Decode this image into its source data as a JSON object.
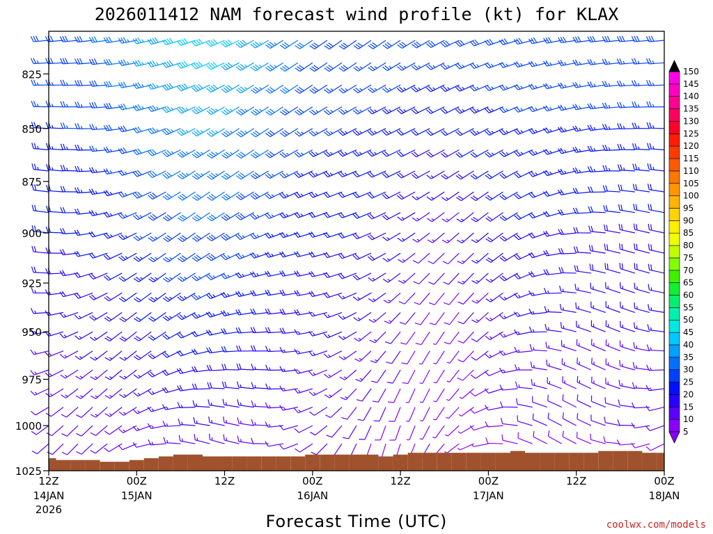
{
  "chart_data": {
    "type": "wind-barb-time-height",
    "title": "2026011412 NAM forecast wind profile (kt) for KLAX",
    "xlabel": "Forecast Time (UTC)",
    "ylabel": "",
    "y_ticks": [
      "825",
      "850",
      "875",
      "900",
      "925",
      "950",
      "975",
      "1000",
      "1025"
    ],
    "y_values": [
      825,
      850,
      875,
      900,
      925,
      950,
      975,
      1000,
      1025
    ],
    "ylim": [
      1025,
      806
    ],
    "x_ticks": [
      {
        "time": "12Z",
        "date": "14JAN",
        "year": "2026",
        "hour": 0
      },
      {
        "time": "00Z",
        "date": "15JAN",
        "year": "",
        "hour": 12
      },
      {
        "time": "12Z",
        "date": "",
        "year": "",
        "hour": 24
      },
      {
        "time": "00Z",
        "date": "16JAN",
        "year": "",
        "hour": 36
      },
      {
        "time": "12Z",
        "date": "",
        "year": "",
        "hour": 48
      },
      {
        "time": "00Z",
        "date": "17JAN",
        "year": "",
        "hour": 60
      },
      {
        "time": "12Z",
        "date": "",
        "year": "",
        "hour": 72
      },
      {
        "time": "00Z",
        "date": "18JAN",
        "year": "",
        "hour": 84
      }
    ],
    "xlim": [
      0,
      84
    ],
    "forecast_interval_hours": 2,
    "barb_levels_hPa": [
      810,
      820,
      830,
      840,
      850,
      860,
      870,
      880,
      890,
      900,
      910,
      920,
      930,
      940,
      950,
      960,
      970,
      980,
      990,
      1000,
      1010
    ],
    "colorbar": {
      "label_unit": "kt",
      "levels": [
        "5",
        "10",
        "15",
        "20",
        "25",
        "30",
        "35",
        "40",
        "45",
        "50",
        "55",
        "60",
        "65",
        "70",
        "75",
        "80",
        "85",
        "90",
        "95",
        "100",
        "105",
        "110",
        "115",
        "120",
        "125",
        "130",
        "135",
        "140",
        "145",
        "150"
      ],
      "colors": [
        "#8a00ff",
        "#5a00ff",
        "#2800ff",
        "#0010ff",
        "#0040ff",
        "#0070ff",
        "#00a0ff",
        "#00c8ff",
        "#00e8e0",
        "#00f0b0",
        "#00f070",
        "#10f030",
        "#40f000",
        "#80ff00",
        "#c0ff00",
        "#f0ff00",
        "#ffee00",
        "#ffd200",
        "#ffb400",
        "#ff9600",
        "#ff7800",
        "#ff5a00",
        "#ff3c00",
        "#ff1e00",
        "#ff0028",
        "#ff0060",
        "#ff0090",
        "#ff00c0",
        "#ff00e8"
      ],
      "under_color": "#8a00ff",
      "over_color": "#000000"
    },
    "surface_pressure_hPa": [
      1018,
      1019,
      1019,
      1019,
      1020,
      1020,
      1019,
      1018,
      1017,
      1016,
      1016,
      1017,
      1017,
      1017,
      1017,
      1017,
      1017,
      1017,
      1016,
      1016,
      1016,
      1016,
      1016,
      1017,
      1016,
      1015,
      1015,
      1015,
      1015,
      1015,
      1015,
      1015,
      1014,
      1015,
      1015,
      1015,
      1015,
      1015,
      1014,
      1014,
      1014,
      1015,
      1015,
      1015,
      1015,
      1015,
      1015,
      1015,
      1015,
      1015,
      1014,
      1014,
      1014,
      1013,
      1013,
      1013,
      1014,
      1015,
      1015,
      1015,
      1015,
      1015,
      1015,
      1015,
      1015,
      1015,
      1015,
      1016,
      1016,
      1016,
      1016,
      1016,
      1017,
      1017,
      1017,
      1017,
      1017,
      1017,
      1016,
      1016,
      1016,
      1016,
      1016,
      1016,
      1016
    ],
    "surface_color": "#a0522d",
    "credit": "coolwx.com/models"
  }
}
